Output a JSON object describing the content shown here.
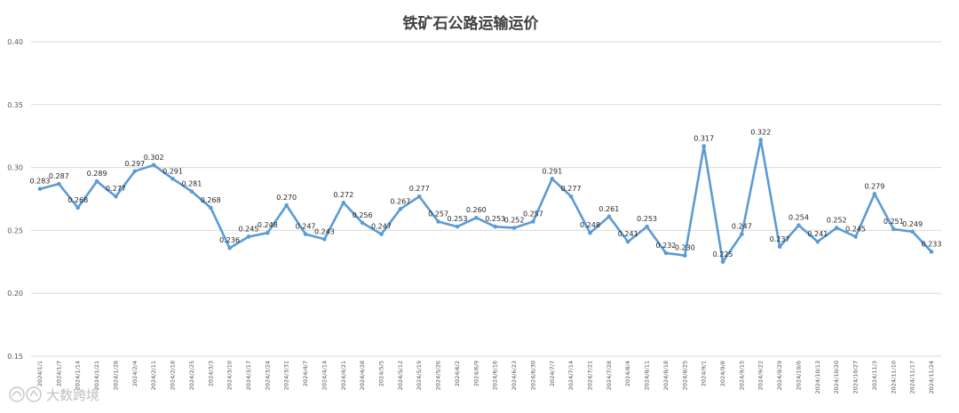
{
  "chart_data": {
    "type": "line",
    "title": "铁矿石公路运输运价",
    "xlabel": "",
    "ylabel": "",
    "ylim": [
      0.15,
      0.4
    ],
    "yticks": [
      "0.40",
      "0.35",
      "0.30",
      "0.25",
      "0.20",
      "0.15"
    ],
    "grid": true,
    "legend": "none",
    "line_color": "#5b9bd5",
    "categories": [
      "2024/1/1",
      "2024/1/7",
      "2024/1/14",
      "2024/1/21",
      "2024/1/28",
      "2024/2/4",
      "2024/2/11",
      "2024/2/18",
      "2024/2/25",
      "2024/3/3",
      "2024/3/10",
      "2024/3/17",
      "2024/3/24",
      "2024/3/31",
      "2024/4/7",
      "2024/4/14",
      "2024/4/21",
      "2024/4/28",
      "2024/5/5",
      "2024/5/12",
      "2024/5/19",
      "2024/5/26",
      "2024/6/2",
      "2024/6/9",
      "2024/6/16",
      "2024/6/23",
      "2024/6/30",
      "2024/7/7",
      "2024/7/14",
      "2024/7/21",
      "2024/7/28",
      "2024/8/4",
      "2024/8/11",
      "2024/8/18",
      "2024/8/25",
      "2024/9/1",
      "2024/9/8",
      "2024/9/15",
      "2024/9/22",
      "2024/9/29",
      "2024/10/6",
      "2024/10/13",
      "2024/10/20",
      "2024/10/27",
      "2024/11/3",
      "2024/11/10",
      "2024/11/17",
      "2024/11/24"
    ],
    "values": [
      0.283,
      0.287,
      0.268,
      0.289,
      0.277,
      0.297,
      0.302,
      0.291,
      0.281,
      0.268,
      0.236,
      0.245,
      0.248,
      0.27,
      0.247,
      0.243,
      0.272,
      0.256,
      0.247,
      0.267,
      0.277,
      0.257,
      0.253,
      0.26,
      0.253,
      0.252,
      0.257,
      0.291,
      0.277,
      0.248,
      0.261,
      0.241,
      0.253,
      0.232,
      0.23,
      0.317,
      0.225,
      0.247,
      0.322,
      0.237,
      0.254,
      0.241,
      0.252,
      0.245,
      0.279,
      0.251,
      0.249,
      0.233
    ],
    "labels": [
      "0.283",
      "0.287",
      "0.268",
      "0.289",
      "0.277",
      "0.297",
      "0.302",
      "0.291",
      "0.281",
      "0.268",
      "0.236",
      "0.245",
      "0.248",
      "0.270",
      "0.247",
      "0.243",
      "0.272",
      "0.256",
      "0.247",
      "0.267",
      "0.277",
      "0.257",
      "0.253",
      "0.260",
      "0.253",
      "0.252",
      "0.257",
      "0.291",
      "0.277",
      "0.248",
      "0.261",
      "0.241",
      "0.253",
      "0.232",
      "0.230",
      "0.317",
      "0.225",
      "0.247",
      "0.322",
      "0.237",
      "0.254",
      "0.241",
      "0.252",
      "0.245",
      "0.279",
      "0.251",
      "0.249",
      "0.233"
    ]
  },
  "watermark": {
    "text": "大数跨境"
  }
}
